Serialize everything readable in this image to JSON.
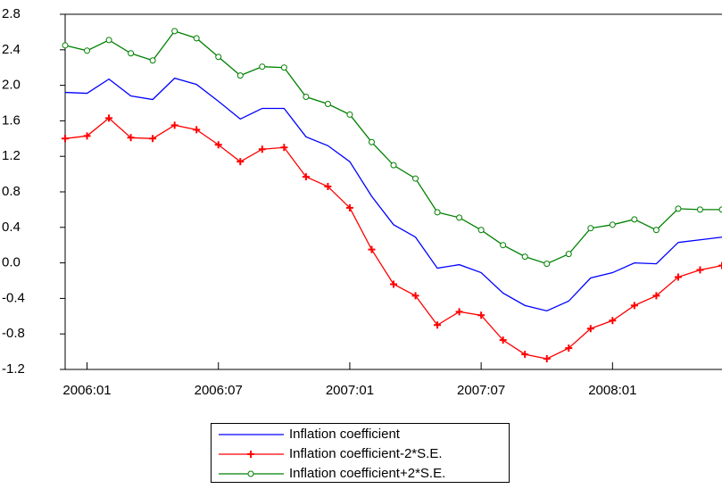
{
  "chart_data": {
    "type": "line",
    "categories": [
      null,
      "2006:01",
      null,
      null,
      null,
      null,
      null,
      "2006:07",
      null,
      null,
      null,
      null,
      null,
      "2007:01",
      null,
      null,
      null,
      null,
      null,
      "2007:07",
      null,
      null,
      null,
      null,
      null,
      "2008:01",
      null,
      null,
      null,
      null,
      null
    ],
    "series": [
      {
        "name": "Inflation coefficient",
        "color": "#0000ff",
        "marker": "none",
        "values": [
          1.92,
          1.91,
          2.07,
          1.88,
          1.84,
          2.08,
          2.01,
          1.82,
          1.62,
          1.74,
          1.74,
          1.42,
          1.32,
          1.14,
          0.75,
          0.43,
          0.29,
          -0.06,
          -0.02,
          -0.11,
          -0.34,
          -0.48,
          -0.54,
          -0.43,
          -0.17,
          -0.11,
          0.0,
          -0.01,
          0.23,
          0.26,
          0.29
        ]
      },
      {
        "name": "Inflation coefficient-2*S.E.",
        "color": "#ff0000",
        "marker": "plus",
        "values": [
          1.4,
          1.43,
          1.63,
          1.41,
          1.4,
          1.55,
          1.5,
          1.33,
          1.14,
          1.28,
          1.3,
          0.97,
          0.86,
          0.62,
          0.15,
          -0.24,
          -0.37,
          -0.7,
          -0.55,
          -0.59,
          -0.87,
          -1.03,
          -1.08,
          -0.96,
          -0.74,
          -0.65,
          -0.48,
          -0.37,
          -0.16,
          -0.08,
          -0.03
        ]
      },
      {
        "name": "Inflation coefficient+2*S.E.",
        "color": "#008000",
        "marker": "circle",
        "values": [
          2.45,
          2.39,
          2.51,
          2.36,
          2.28,
          2.61,
          2.53,
          2.32,
          2.11,
          2.21,
          2.2,
          1.87,
          1.79,
          1.67,
          1.36,
          1.1,
          0.95,
          0.57,
          0.51,
          0.37,
          0.2,
          0.07,
          -0.01,
          0.1,
          0.39,
          0.43,
          0.49,
          0.37,
          0.61,
          0.6,
          0.6
        ]
      }
    ],
    "ylim": [
      -1.2,
      2.8
    ],
    "yticks": [
      -1.2,
      -0.8,
      -0.4,
      {
        "value": 0,
        "label": "0.0"
      },
      0.4,
      0.8,
      1.2,
      1.6,
      {
        "value": 2,
        "label": "2.0"
      },
      2.4,
      2.8
    ],
    "legend": "bottom"
  }
}
